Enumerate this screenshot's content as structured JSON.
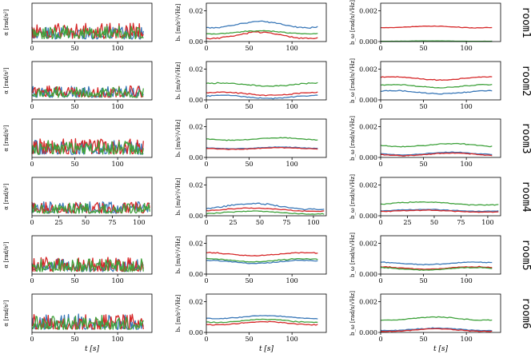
{
  "colors": {
    "blue": "#3a78b8",
    "red": "#d62728",
    "green": "#3fa23c"
  },
  "figure": {
    "xlabel": "t [s]"
  },
  "columns": [
    {
      "id": "alpha",
      "ylabel": "α [rad/s²]",
      "yticks": []
    },
    {
      "id": "ba",
      "ylabel": "bₐ [m/s²/√Hz]",
      "yticks": [
        "0.00",
        "0.02"
      ]
    },
    {
      "id": "bw",
      "ylabel": "b_ω [rad/s/√Hz]",
      "yticks": [
        "0.000",
        "0.002"
      ]
    }
  ],
  "rows": [
    {
      "label": "room1",
      "xticks": [
        "0",
        "50",
        "100"
      ]
    },
    {
      "label": "room2",
      "xticks": [
        "0",
        "50",
        "100"
      ]
    },
    {
      "label": "room3",
      "xticks": [
        "0",
        "50",
        "100"
      ]
    },
    {
      "label": "room4",
      "xticks": [
        "0",
        "25",
        "50",
        "75",
        "100"
      ]
    },
    {
      "label": "room5",
      "xticks": [
        "0",
        "50",
        "100"
      ]
    },
    {
      "label": "room6",
      "xticks": [
        "0",
        "50",
        "100"
      ]
    }
  ],
  "chart_data": {
    "type": "line",
    "title": "",
    "grid": false,
    "legend": "none",
    "xlabel": "t [s]",
    "row_xlim": [
      [
        0,
        140
      ],
      [
        0,
        140
      ],
      [
        0,
        140
      ],
      [
        0,
        112
      ],
      [
        0,
        140
      ],
      [
        0,
        140
      ]
    ],
    "row_tmax": [
      130,
      130,
      130,
      110,
      130,
      130
    ],
    "column_ylim": [
      [
        0,
        0.6
      ],
      [
        0,
        0.025
      ],
      [
        0,
        0.0025
      ]
    ],
    "column_ylabels": [
      "α [rad/s²]",
      "bₐ [m/s²/√Hz]",
      "b_ω [rad/s/√Hz]"
    ],
    "series_names": [
      "blue",
      "red",
      "green"
    ],
    "panels": [
      [
        {
          "blue": {
            "base": 0.1,
            "amp": 0.06,
            "noise": 0.2
          },
          "red": {
            "base": 0.12,
            "amp": 0.05,
            "noise": 0.24
          },
          "green": {
            "base": 0.11,
            "amp": 0.05,
            "noise": 0.2
          }
        },
        {
          "blue": {
            "base": 0.011,
            "amp": 0.002,
            "noise": 0.0003
          },
          "red": {
            "base": 0.004,
            "amp": 0.002,
            "noise": 0.0003
          },
          "green": {
            "base": 0.006,
            "amp": 0.001,
            "noise": 0.0003
          }
        },
        {
          "blue": {
            "base": 2e-05,
            "amp": 1e-05,
            "noise": 1e-05
          },
          "red": {
            "base": 0.00095,
            "amp": 5e-05,
            "noise": 3e-05
          },
          "green": {
            "base": 3e-05,
            "amp": 1e-05,
            "noise": 1e-05
          }
        }
      ],
      [
        {
          "blue": {
            "base": 0.1,
            "amp": 0.05,
            "noise": 0.18
          },
          "red": {
            "base": 0.11,
            "amp": 0.05,
            "noise": 0.18
          },
          "green": {
            "base": 0.1,
            "amp": 0.05,
            "noise": 0.17
          }
        },
        {
          "blue": {
            "base": 0.002,
            "amp": 0.001,
            "noise": 0.0004
          },
          "red": {
            "base": 0.004,
            "amp": 0.001,
            "noise": 0.0004
          },
          "green": {
            "base": 0.01,
            "amp": 0.001,
            "noise": 0.0004
          }
        },
        {
          "blue": {
            "base": 0.0005,
            "amp": 0.0001,
            "noise": 3e-05
          },
          "red": {
            "base": 0.0014,
            "amp": 0.0001,
            "noise": 3e-05
          },
          "green": {
            "base": 0.0009,
            "amp": 0.0001,
            "noise": 3e-05
          }
        }
      ],
      [
        {
          "blue": {
            "base": 0.12,
            "amp": 0.06,
            "noise": 0.22
          },
          "red": {
            "base": 0.14,
            "amp": 0.06,
            "noise": 0.24
          },
          "green": {
            "base": 0.12,
            "amp": 0.06,
            "noise": 0.22
          }
        },
        {
          "blue": {
            "base": 0.0062,
            "amp": 0.0005,
            "noise": 0.0003
          },
          "red": {
            "base": 0.0058,
            "amp": 0.0005,
            "noise": 0.0003
          },
          "green": {
            "base": 0.012,
            "amp": 0.0008,
            "noise": 0.0003
          }
        },
        {
          "blue": {
            "base": 0.00025,
            "amp": 8e-05,
            "noise": 3e-05
          },
          "red": {
            "base": 0.0002,
            "amp": 8e-05,
            "noise": 3e-05
          },
          "green": {
            "base": 0.0008,
            "amp": 0.0001,
            "noise": 3e-05
          }
        }
      ],
      [
        {
          "blue": {
            "base": 0.1,
            "amp": 0.05,
            "noise": 0.18
          },
          "red": {
            "base": 0.11,
            "amp": 0.05,
            "noise": 0.18
          },
          "green": {
            "base": 0.1,
            "amp": 0.05,
            "noise": 0.16
          }
        },
        {
          "blue": {
            "base": 0.006,
            "amp": 0.002,
            "noise": 0.0003
          },
          "red": {
            "base": 0.004,
            "amp": 0.001,
            "noise": 0.0003
          },
          "green": {
            "base": 0.002,
            "amp": 0.001,
            "noise": 0.0003
          }
        },
        {
          "blue": {
            "base": 0.00035,
            "amp": 6e-05,
            "noise": 3e-05
          },
          "red": {
            "base": 0.0003,
            "amp": 6e-05,
            "noise": 3e-05
          },
          "green": {
            "base": 0.0008,
            "amp": 0.0001,
            "noise": 3e-05
          }
        }
      ],
      [
        {
          "blue": {
            "base": 0.1,
            "amp": 0.05,
            "noise": 0.2
          },
          "red": {
            "base": 0.11,
            "amp": 0.06,
            "noise": 0.22
          },
          "green": {
            "base": 0.1,
            "amp": 0.05,
            "noise": 0.2
          }
        },
        {
          "blue": {
            "base": 0.008,
            "amp": 0.001,
            "noise": 0.0003
          },
          "red": {
            "base": 0.013,
            "amp": 0.001,
            "noise": 0.0003
          },
          "green": {
            "base": 0.009,
            "amp": 0.001,
            "noise": 0.0003
          }
        },
        {
          "blue": {
            "base": 0.0007,
            "amp": 8e-05,
            "noise": 3e-05
          },
          "red": {
            "base": 0.0004,
            "amp": 8e-05,
            "noise": 3e-05
          },
          "green": {
            "base": 0.00035,
            "amp": 8e-05,
            "noise": 3e-05
          }
        }
      ],
      [
        {
          "blue": {
            "base": 0.12,
            "amp": 0.06,
            "noise": 0.24
          },
          "red": {
            "base": 0.12,
            "amp": 0.06,
            "noise": 0.24
          },
          "green": {
            "base": 0.12,
            "amp": 0.06,
            "noise": 0.22
          }
        },
        {
          "blue": {
            "base": 0.01,
            "amp": 0.001,
            "noise": 0.0003
          },
          "red": {
            "base": 0.006,
            "amp": 0.001,
            "noise": 0.0003
          },
          "green": {
            "base": 0.0075,
            "amp": 0.001,
            "noise": 0.0003
          }
        },
        {
          "blue": {
            "base": 0.0002,
            "amp": 8e-05,
            "noise": 3e-05
          },
          "red": {
            "base": 0.00015,
            "amp": 8e-05,
            "noise": 3e-05
          },
          "green": {
            "base": 0.0009,
            "amp": 0.0001,
            "noise": 3e-05
          }
        }
      ]
    ]
  }
}
